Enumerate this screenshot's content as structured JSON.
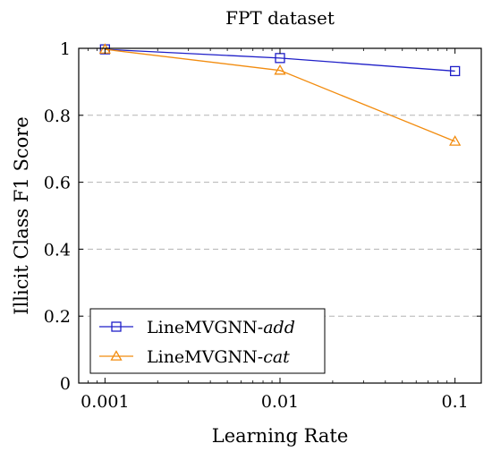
{
  "chart_data": {
    "type": "line",
    "title": "FPT dataset",
    "xlabel": "Learning Rate",
    "ylabel": "Illicit Class F1 Score",
    "x_scale": "log",
    "x": [
      0.001,
      0.01,
      0.1
    ],
    "x_tick_labels": [
      "0.001",
      "0.01",
      "0.1"
    ],
    "ylim": [
      0,
      1
    ],
    "y_ticks": [
      0,
      0.2,
      0.4,
      0.6,
      0.8,
      1
    ],
    "y_tick_labels": [
      "0",
      "0.2",
      "0.4",
      "0.6",
      "0.8",
      "1"
    ],
    "grid": "horizontal dashed",
    "legend_position": "bottom-left",
    "series": [
      {
        "name_prefix": "LineMVGNN-",
        "name_suffix": "add",
        "values": [
          0.997,
          0.971,
          0.932
        ],
        "color": "#1f1fc8",
        "marker": "square"
      },
      {
        "name_prefix": "LineMVGNN-",
        "name_suffix": "cat",
        "values": [
          0.997,
          0.934,
          0.722
        ],
        "color": "#f28c0f",
        "marker": "triangle"
      }
    ]
  }
}
